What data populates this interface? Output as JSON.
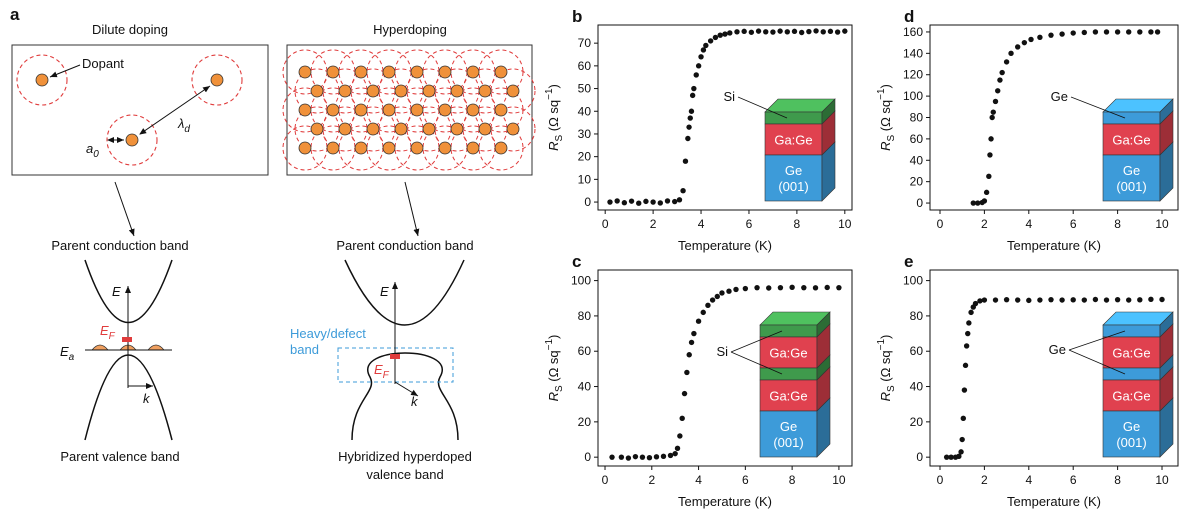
{
  "panel_a": {
    "panel": "a",
    "left_title": "Dilute doping",
    "right_title": "Hyperdoping",
    "dopant": "Dopant",
    "a0": {
      "main": "a",
      "sub": "0"
    },
    "lambda_d": {
      "main": "λ",
      "sub": "d"
    },
    "left_conduction": "Parent conduction band",
    "right_conduction": "Parent conduction band",
    "left_E": "E",
    "right_E": "E",
    "left_EF": {
      "main": "E",
      "sub": "F"
    },
    "right_EF": {
      "main": "E",
      "sub": "F"
    },
    "Ea": {
      "main": "E",
      "sub": "a"
    },
    "left_k": "k",
    "right_k": "k",
    "defect_band": [
      "Heavy/defect",
      "band"
    ],
    "left_valence": "Parent valence band",
    "right_valence": [
      "Hybridized hyperdoped",
      "valence band"
    ]
  },
  "chart_data": [
    {
      "type": "scatter",
      "panel": "b",
      "color": "#111111",
      "x": [
        0.2,
        0.5,
        0.8,
        1.1,
        1.4,
        1.7,
        2.0,
        2.3,
        2.6,
        2.9,
        3.1,
        3.25,
        3.35,
        3.45,
        3.5,
        3.55,
        3.6,
        3.65,
        3.7,
        3.8,
        3.9,
        4.0,
        4.1,
        4.2,
        4.4,
        4.6,
        4.8,
        5.0,
        5.2,
        5.5,
        5.8,
        6.1,
        6.4,
        6.7,
        7.0,
        7.3,
        7.6,
        7.9,
        8.2,
        8.5,
        8.8,
        9.1,
        9.4,
        9.7,
        10.0
      ],
      "values": [
        0,
        0.5,
        -0.3,
        0.4,
        -0.5,
        0.3,
        0,
        -0.4,
        0.5,
        0.2,
        1,
        5,
        18,
        28,
        33,
        37,
        40,
        47,
        50,
        56,
        60,
        64,
        67,
        69,
        71,
        72.5,
        73.5,
        74,
        74.5,
        75,
        75.2,
        74.8,
        75.3,
        75,
        74.9,
        75.3,
        75,
        75.2,
        74.7,
        75.1,
        75.4,
        75,
        75.2,
        74.9,
        75.3
      ],
      "xlim": [
        -0.3,
        10.3
      ],
      "ylim": [
        -3.5,
        78
      ],
      "xticks": [
        0,
        2,
        4,
        6,
        8,
        10
      ],
      "yticks": [
        0,
        10,
        20,
        30,
        40,
        50,
        60,
        70
      ],
      "x_label": "Temperature (K)",
      "y_label": {
        "main": "R",
        "sub": "S",
        "unit": " (Ω sq",
        "sup": "−1",
        "close": ")"
      },
      "inset": {
        "callout": "Si",
        "layers": [
          {
            "color": "#3f9a4c"
          },
          {
            "color": "#e0414f",
            "label": [
              "Ga:Ge"
            ]
          },
          {
            "color": "#3d9bd9",
            "label": [
              "Ge",
              "(001)"
            ]
          }
        ]
      }
    },
    {
      "type": "scatter",
      "panel": "c",
      "color": "#111111",
      "x": [
        0.3,
        0.7,
        1.0,
        1.3,
        1.6,
        1.9,
        2.2,
        2.5,
        2.8,
        3.0,
        3.1,
        3.2,
        3.3,
        3.4,
        3.5,
        3.6,
        3.7,
        3.8,
        4.0,
        4.2,
        4.4,
        4.6,
        4.8,
        5.0,
        5.3,
        5.6,
        6.0,
        6.5,
        7.0,
        7.5,
        8.0,
        8.5,
        9.0,
        9.5,
        10.0
      ],
      "values": [
        0,
        0,
        -0.5,
        0.3,
        0,
        -0.3,
        0.2,
        0.5,
        1,
        2,
        5,
        12,
        22,
        36,
        48,
        58,
        65,
        70,
        77,
        82,
        86,
        89,
        91,
        93,
        94,
        95,
        95.5,
        96,
        95.8,
        96,
        96.2,
        96,
        95.9,
        96.1,
        96
      ],
      "xlim": [
        -0.3,
        10.56
      ],
      "ylim": [
        -5,
        106
      ],
      "xticks": [
        0,
        2,
        4,
        6,
        8,
        10
      ],
      "yticks": [
        0,
        20,
        40,
        60,
        80,
        100
      ],
      "x_label": "Temperature (K)",
      "y_label": {
        "main": "R",
        "sub": "S",
        "unit": " (Ω sq",
        "sup": "−1",
        "close": ")"
      },
      "inset": {
        "callout": "Si",
        "layers": [
          {
            "color": "#3f9a4c"
          },
          {
            "color": "#e0414f",
            "label": [
              "Ga:Ge"
            ]
          },
          {
            "color": "#3f9a4c"
          },
          {
            "color": "#e0414f",
            "label": [
              "Ga:Ge"
            ]
          },
          {
            "color": "#3d9bd9",
            "label": [
              "Ge",
              "(001)"
            ]
          }
        ]
      }
    },
    {
      "type": "scatter",
      "panel": "d",
      "color": "#111111",
      "x": [
        1.5,
        1.7,
        1.9,
        2.0,
        2.1,
        2.2,
        2.25,
        2.3,
        2.35,
        2.4,
        2.5,
        2.6,
        2.7,
        2.8,
        3.0,
        3.2,
        3.5,
        3.8,
        4.1,
        4.5,
        5.0,
        5.5,
        6.0,
        6.5,
        7.0,
        7.5,
        8.0,
        8.5,
        9.0,
        9.5,
        9.8
      ],
      "values": [
        0,
        0,
        0.5,
        2,
        10,
        25,
        45,
        60,
        80,
        85,
        95,
        105,
        115,
        122,
        132,
        140,
        146,
        150,
        153,
        155,
        157,
        158,
        159,
        159.5,
        160,
        160,
        160,
        160,
        160,
        160,
        160
      ],
      "xlim": [
        -0.45,
        10.72
      ],
      "ylim": [
        -6.5,
        166.5
      ],
      "xticks": [
        0,
        2,
        4,
        6,
        8,
        10
      ],
      "yticks": [
        0,
        20,
        40,
        60,
        80,
        100,
        120,
        140,
        160
      ],
      "x_label": "Temperature (K)",
      "y_label": {
        "main": "R",
        "sub": "S",
        "unit": " (Ω sq",
        "sup": "−1",
        "close": ")"
      },
      "inset": {
        "callout": "Ge",
        "layers": [
          {
            "color": "#3d9bd9"
          },
          {
            "color": "#e0414f",
            "label": [
              "Ga:Ge"
            ]
          },
          {
            "color": "#3d9bd9",
            "label": [
              "Ge",
              "(001)"
            ]
          }
        ]
      }
    },
    {
      "type": "scatter",
      "panel": "e",
      "color": "#111111",
      "x": [
        0.3,
        0.5,
        0.7,
        0.85,
        0.95,
        1.0,
        1.05,
        1.1,
        1.15,
        1.2,
        1.25,
        1.3,
        1.4,
        1.5,
        1.6,
        1.8,
        2.0,
        2.5,
        3,
        3.5,
        4,
        4.5,
        5,
        5.5,
        6,
        6.5,
        7,
        7.5,
        8,
        8.5,
        9,
        9.5,
        10
      ],
      "values": [
        0,
        0,
        0,
        0.5,
        3,
        10,
        22,
        38,
        52,
        63,
        70,
        76,
        82,
        85,
        87,
        88.5,
        89,
        89,
        89.2,
        89,
        88.8,
        89,
        89.2,
        89,
        89.1,
        89,
        89.3,
        89,
        89.2,
        89,
        89.1,
        89.4,
        89.3
      ],
      "xlim": [
        -0.45,
        10.72
      ],
      "ylim": [
        -5,
        106
      ],
      "xticks": [
        0,
        2,
        4,
        6,
        8,
        10
      ],
      "yticks": [
        0,
        20,
        40,
        60,
        80,
        100
      ],
      "x_label": "Temperature (K)",
      "y_label": {
        "main": "R",
        "sub": "S",
        "unit": " (Ω sq",
        "sup": "−1",
        "close": ")"
      },
      "inset": {
        "callout": "Ge",
        "layers": [
          {
            "color": "#3d9bd9"
          },
          {
            "color": "#e0414f",
            "label": [
              "Ga:Ge"
            ]
          },
          {
            "color": "#3d9bd9"
          },
          {
            "color": "#e0414f",
            "label": [
              "Ga:Ge"
            ]
          },
          {
            "color": "#3d9bd9",
            "label": [
              "Ge",
              "(001)"
            ]
          }
        ]
      }
    }
  ]
}
